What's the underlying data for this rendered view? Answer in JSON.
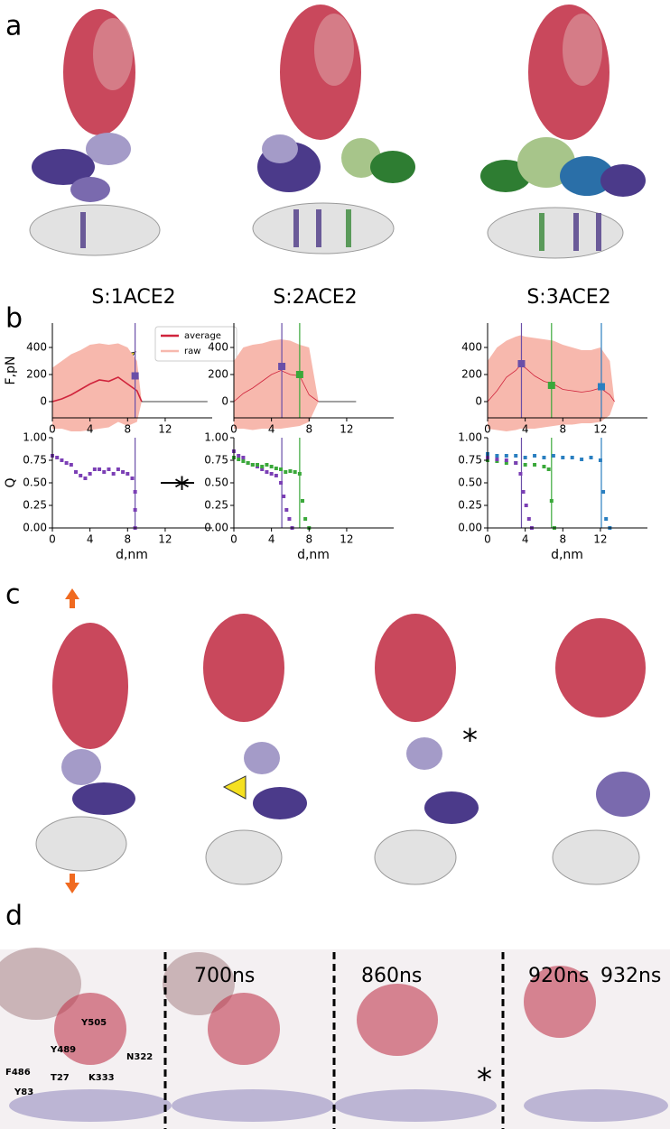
{
  "panel_labels": [
    "a",
    "b",
    "c",
    "d"
  ],
  "chart_data": [
    {
      "type": "line",
      "title": "S:1ACE2",
      "ylabel": "F,pN",
      "legend": true,
      "x": [
        0,
        1,
        2,
        3,
        4,
        5,
        6,
        7,
        8,
        9,
        9.5
      ],
      "series": [
        {
          "name": "raw",
          "color": "#f7b8ad",
          "values": [
            250,
            300,
            350,
            380,
            420,
            430,
            420,
            430,
            400,
            300,
            0
          ],
          "lows": [
            -200,
            -200,
            -220,
            -220,
            -210,
            -200,
            -190,
            -150,
            -180,
            -150,
            0
          ]
        },
        {
          "name": "average",
          "color": "#d0243c",
          "values": [
            0,
            20,
            50,
            90,
            130,
            160,
            150,
            180,
            130,
            80,
            0
          ]
        },
        {
          "color": "#000000",
          "x": [
            9.5,
            16.5
          ],
          "values": [
            0,
            0
          ]
        }
      ],
      "markers": [
        {
          "x": 8.8,
          "value": 190,
          "color": "#6a4fa8"
        }
      ],
      "xlim": [
        0,
        17
      ],
      "ylim": [
        -120,
        580
      ],
      "xticks": [
        0,
        4,
        8,
        12
      ],
      "yticks": [
        0,
        200,
        400
      ]
    },
    {
      "type": "line",
      "title": "S:2ACE2",
      "x": [
        0,
        1,
        2,
        3,
        4,
        5,
        6,
        7,
        8,
        9
      ],
      "series": [
        {
          "color": "#f7b8ad",
          "values": [
            300,
            400,
            420,
            430,
            450,
            460,
            450,
            420,
            400,
            0
          ],
          "lows": [
            -200,
            -200,
            -210,
            -200,
            -200,
            -200,
            -190,
            -180,
            -150,
            0
          ]
        },
        {
          "color": "#d0243c",
          "values": [
            0,
            60,
            100,
            150,
            200,
            230,
            200,
            190,
            50,
            0
          ]
        },
        {
          "color": "#000000",
          "x": [
            9,
            13
          ],
          "values": [
            0,
            0
          ]
        }
      ],
      "markers": [
        {
          "x": 5.1,
          "value": 260,
          "color": "#6a4fa8"
        },
        {
          "x": 7.0,
          "value": 200,
          "color": "#3aa83a"
        }
      ],
      "xlim": [
        0,
        17
      ],
      "ylim": [
        -120,
        580
      ],
      "xticks": [
        0,
        4,
        8,
        12
      ],
      "yticks": [
        0,
        200,
        400
      ]
    },
    {
      "type": "line",
      "title": "S:3ACE2",
      "x": [
        0,
        1,
        2,
        3,
        3.5,
        4,
        5,
        6,
        7,
        8,
        9,
        10,
        11,
        12,
        13,
        13.5
      ],
      "series": [
        {
          "color": "#f7b8ad",
          "values": [
            300,
            400,
            450,
            480,
            490,
            480,
            470,
            460,
            450,
            420,
            400,
            380,
            380,
            400,
            300,
            0
          ],
          "lows": [
            -200,
            -210,
            -220,
            -210,
            -200,
            -200,
            -200,
            -190,
            -180,
            -170,
            -170,
            -160,
            -160,
            -150,
            -100,
            0
          ]
        },
        {
          "color": "#d0243c",
          "values": [
            0,
            80,
            180,
            230,
            270,
            250,
            190,
            150,
            130,
            90,
            80,
            70,
            80,
            100,
            50,
            0
          ]
        }
      ],
      "markers": [
        {
          "x": 3.6,
          "value": 280,
          "color": "#6a4fa8"
        },
        {
          "x": 6.8,
          "value": 120,
          "color": "#3aa83a"
        },
        {
          "x": 12.1,
          "value": 110,
          "color": "#2a7fc0"
        }
      ],
      "xlim": [
        0,
        17
      ],
      "ylim": [
        -120,
        580
      ],
      "xticks": [
        0,
        4,
        8,
        12
      ],
      "yticks": [
        0,
        200,
        400
      ]
    },
    {
      "type": "scatter",
      "xlabel": "d,nm",
      "ylabel": "Q",
      "annotation": "*",
      "series": [
        {
          "color": "#7b3fb5",
          "x": [
            0,
            0.5,
            1,
            1.5,
            2,
            2.5,
            3,
            3.5,
            4,
            4.5,
            5,
            5.5,
            6,
            6.5,
            7,
            7.5,
            8,
            8.5,
            8.8,
            8.8,
            8.8
          ],
          "values": [
            0.8,
            0.78,
            0.75,
            0.72,
            0.7,
            0.62,
            0.58,
            0.55,
            0.6,
            0.65,
            0.65,
            0.62,
            0.65,
            0.6,
            0.65,
            0.62,
            0.6,
            0.55,
            0.4,
            0.2,
            0
          ]
        }
      ],
      "vlines": [
        {
          "x": 8.8,
          "color": "#6a4fa8"
        }
      ],
      "xlim": [
        0,
        17
      ],
      "ylim": [
        0,
        1
      ],
      "xticks": [
        0,
        4,
        8,
        12
      ],
      "yticks": [
        {
          "value": 0,
          "label": "0.00"
        },
        0.25,
        {
          "value": 0.5,
          "label": "0.50"
        },
        0.75,
        {
          "value": 1,
          "label": "1.00"
        }
      ]
    },
    {
      "type": "scatter",
      "xlabel": "d,nm",
      "series": [
        {
          "color": "#7b3fb5",
          "x": [
            0,
            0.5,
            1,
            1.5,
            2,
            2.5,
            3,
            3.5,
            4,
            4.5,
            5,
            5.3,
            5.6,
            5.9,
            6.2
          ],
          "values": [
            0.85,
            0.8,
            0.78,
            0.72,
            0.7,
            0.68,
            0.65,
            0.62,
            0.6,
            0.58,
            0.5,
            0.35,
            0.2,
            0.1,
            0
          ]
        },
        {
          "color": "#3aa83a",
          "x": [
            0,
            0.5,
            1,
            1.5,
            2,
            2.5,
            3,
            3.5,
            4,
            4.5,
            5,
            5.5,
            6,
            6.5,
            7,
            7.3,
            7.6,
            8
          ],
          "values": [
            0.78,
            0.76,
            0.74,
            0.72,
            0.7,
            0.7,
            0.68,
            0.7,
            0.68,
            0.66,
            0.65,
            0.62,
            0.63,
            0.62,
            0.6,
            0.3,
            0.1,
            0
          ]
        }
      ],
      "vlines": [
        {
          "x": 5.1,
          "color": "#6a4fa8"
        },
        {
          "x": 7.0,
          "color": "#3aa83a"
        }
      ],
      "xlim": [
        0,
        17
      ],
      "ylim": [
        0,
        1
      ],
      "xticks": [
        0,
        4,
        8,
        12
      ],
      "yticks": [
        {
          "value": 0,
          "label": "0.00"
        },
        0.25,
        {
          "value": 0.5,
          "label": "0.50"
        },
        0.75,
        {
          "value": 1,
          "label": "1.00"
        }
      ]
    },
    {
      "type": "scatter",
      "xlabel": "d,nm",
      "series": [
        {
          "color": "#2a7fc0",
          "x": [
            0,
            1,
            2,
            3,
            4,
            5,
            6,
            7,
            8,
            9,
            10,
            11,
            12,
            12.3,
            12.6,
            13
          ],
          "values": [
            0.82,
            0.8,
            0.8,
            0.8,
            0.78,
            0.8,
            0.78,
            0.8,
            0.78,
            0.78,
            0.76,
            0.78,
            0.75,
            0.4,
            0.1,
            0
          ]
        },
        {
          "color": "#3aa83a",
          "x": [
            0,
            1,
            2,
            3,
            4,
            5,
            6,
            6.5,
            6.8,
            7.1
          ],
          "values": [
            0.75,
            0.74,
            0.72,
            0.72,
            0.7,
            0.7,
            0.68,
            0.65,
            0.3,
            0
          ]
        },
        {
          "color": "#7b3fb5",
          "x": [
            0,
            1,
            2,
            3,
            3.5,
            3.8,
            4.1,
            4.4,
            4.7
          ],
          "values": [
            0.78,
            0.76,
            0.75,
            0.72,
            0.6,
            0.4,
            0.25,
            0.1,
            0
          ]
        }
      ],
      "vlines": [
        {
          "x": 3.6,
          "color": "#6a4fa8"
        },
        {
          "x": 6.8,
          "color": "#3aa83a"
        },
        {
          "x": 12.1,
          "color": "#2a7fc0"
        }
      ],
      "xlim": [
        0,
        17
      ],
      "ylim": [
        0,
        1
      ],
      "xticks": [
        0,
        4,
        8,
        12
      ],
      "yticks": [
        {
          "value": 0,
          "label": "0.00"
        },
        0.25,
        {
          "value": 0.5,
          "label": "0.50"
        },
        0.75,
        {
          "value": 1,
          "label": "1.00"
        }
      ]
    }
  ],
  "panel_c": {
    "annotation": "*"
  },
  "panel_d": {
    "times": [
      "700ns",
      "860ns",
      "920ns",
      "932ns"
    ],
    "annotation": "*",
    "residues": [
      {
        "label": "Y489",
        "color": "#b0203a"
      },
      {
        "label": "Y505",
        "color": "#b0203a"
      },
      {
        "label": "N322",
        "color": "#c040c8"
      },
      {
        "label": "F486",
        "color": "#b0203a"
      },
      {
        "label": "T27",
        "color": "#a890d0"
      },
      {
        "label": "K333",
        "color": "#a890d0"
      },
      {
        "label": "Y83",
        "color": "#a890d0"
      }
    ]
  }
}
